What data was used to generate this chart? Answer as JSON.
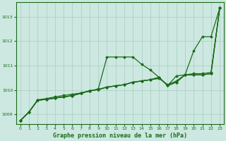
{
  "background_color": "#cce8e0",
  "grid_color": "#aaccc4",
  "line_color": "#1a6b1a",
  "title": "Graphe pression niveau de la mer (hPa)",
  "xlim": [
    -0.5,
    23.5
  ],
  "ylim": [
    1008.6,
    1013.6
  ],
  "yticks": [
    1009,
    1010,
    1011,
    1012,
    1013
  ],
  "xticks": [
    0,
    1,
    2,
    3,
    4,
    5,
    6,
    7,
    8,
    9,
    10,
    11,
    12,
    13,
    14,
    15,
    16,
    17,
    18,
    19,
    20,
    21,
    22,
    23
  ],
  "x": [
    0,
    1,
    2,
    3,
    4,
    5,
    6,
    7,
    8,
    9,
    10,
    11,
    12,
    13,
    14,
    15,
    16,
    17,
    18,
    19,
    20,
    21,
    22,
    23
  ],
  "s1": [
    1008.75,
    1009.1,
    1009.6,
    1009.65,
    1009.72,
    1009.78,
    1009.83,
    1009.88,
    1009.95,
    1010.05,
    1011.35,
    1011.35,
    1011.35,
    1011.35,
    1011.05,
    1010.82,
    1010.52,
    1010.18,
    1010.58,
    1010.62,
    1011.6,
    1012.18,
    1012.18,
    1013.35
  ],
  "s2": [
    1008.75,
    1009.1,
    1009.58,
    1009.62,
    1009.67,
    1009.72,
    1009.77,
    1009.87,
    1009.97,
    1010.02,
    1010.12,
    1010.17,
    1010.22,
    1010.32,
    1010.37,
    1010.42,
    1010.52,
    1010.18,
    1010.32,
    1010.62,
    1010.62,
    1010.62,
    1010.67,
    1013.35
  ],
  "s3": [
    1008.75,
    1009.1,
    1009.58,
    1009.62,
    1009.67,
    1009.72,
    1009.77,
    1009.87,
    1009.97,
    1010.02,
    1010.12,
    1010.17,
    1010.22,
    1010.32,
    1010.37,
    1010.42,
    1010.47,
    1010.22,
    1010.37,
    1010.62,
    1010.67,
    1010.67,
    1010.72,
    1013.35
  ],
  "s4": [
    1008.75,
    1009.1,
    1009.58,
    1009.62,
    1009.67,
    1009.72,
    1009.77,
    1009.87,
    1009.97,
    1010.02,
    1010.12,
    1010.17,
    1010.22,
    1010.32,
    1010.37,
    1010.42,
    1010.52,
    1010.18,
    1010.32,
    1010.62,
    1010.62,
    1010.62,
    1010.67,
    1013.35
  ]
}
